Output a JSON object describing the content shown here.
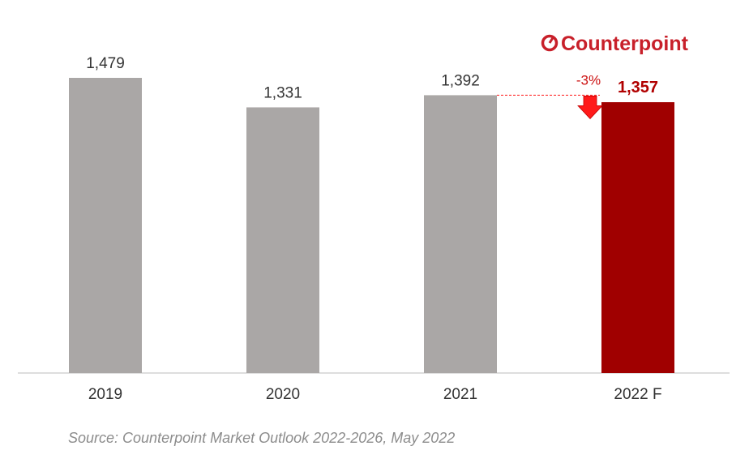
{
  "brand": {
    "name": "Counterpoint"
  },
  "source": "Source: Counterpoint Market Outlook 2022-2026, May 2022",
  "colors": {
    "bar": "#aaa7a6",
    "highlight": "#a00000",
    "change": "#ff1a1a",
    "brand": "#c8202a"
  },
  "chart_data": {
    "type": "bar",
    "title": "",
    "xlabel": "",
    "ylabel": "",
    "categories": [
      "2019",
      "2020",
      "2021",
      "2022 F"
    ],
    "values": [
      1479,
      1331,
      1392,
      1357
    ],
    "value_labels": [
      "1,479",
      "1,331",
      "1,392",
      "1,357"
    ],
    "highlight_index": 3,
    "ylim": [
      0,
      1479
    ],
    "grid": false,
    "annotation": {
      "text": "-3%",
      "from": "2021",
      "to": "2022 F"
    }
  }
}
